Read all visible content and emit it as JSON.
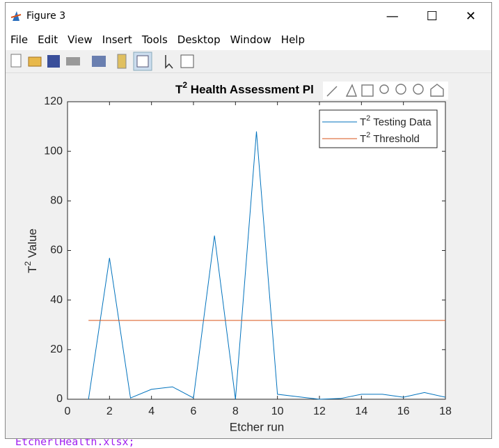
{
  "window": {
    "title": "Figure 3",
    "menu": [
      "File",
      "Edit",
      "View",
      "Insert",
      "Tools",
      "Desktop",
      "Window",
      "Help"
    ],
    "background_text": "EtcherlHealth.xlsx;"
  },
  "chart_data": {
    "type": "line",
    "title": [
      "T",
      "2",
      " Health Assessment Pl"
    ],
    "x_label": "Etcher run",
    "y_label": [
      "T",
      "2",
      " Value"
    ],
    "series": [
      {
        "name": [
          "T",
          "2",
          " Testing Data"
        ],
        "color": "#0072bd",
        "x": [
          1,
          2,
          3,
          4,
          5,
          6,
          7,
          8,
          9,
          10,
          11,
          12,
          13,
          14,
          15,
          16,
          17,
          18
        ],
        "values": [
          0,
          57,
          0.5,
          4,
          5,
          0.5,
          66,
          0,
          108,
          2,
          1,
          0,
          0.3,
          2,
          2,
          0.8,
          2.7,
          0.8
        ]
      },
      {
        "name": [
          "T",
          "2",
          " Threshold"
        ],
        "color": "#d95319",
        "x": [
          1,
          18
        ],
        "values": [
          31.8,
          31.8
        ]
      }
    ],
    "xlim": [
      0,
      18
    ],
    "xticks": [
      0,
      2,
      4,
      6,
      8,
      10,
      12,
      14,
      16,
      18
    ],
    "ylim": [
      0,
      120
    ],
    "yticks": [
      0,
      20,
      40,
      60,
      80,
      100,
      120
    ],
    "grid": false,
    "legend": "top-right"
  }
}
